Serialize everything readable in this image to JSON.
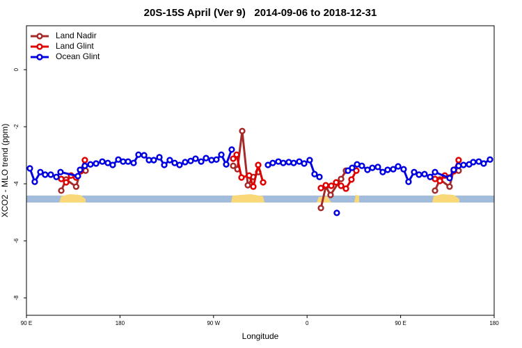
{
  "chart_data": {
    "type": "line",
    "title": "20S-15S April (Ver 9)   2014-09-06 to 2018-12-31",
    "xlabel": "Longitude",
    "ylabel": "XCO2 - MLO trend (ppm)",
    "xlim": [
      90,
      540
    ],
    "xticks": [
      {
        "value": 90,
        "label": "90 E"
      },
      {
        "value": 180,
        "label": "180"
      },
      {
        "value": 270,
        "label": "90 W"
      },
      {
        "value": 360,
        "label": "0"
      },
      {
        "value": 450,
        "label": "90 E"
      },
      {
        "value": 540,
        "label": "180"
      }
    ],
    "ylim": [
      -8.61,
      1.54
    ],
    "yticks": [
      0,
      -2,
      -4,
      -6,
      -8
    ],
    "grid": false,
    "legend": "top-left",
    "series": [
      {
        "name": "Land Nadir",
        "color": "#a52a2a",
        "x": [
          123.5,
          128.2,
          137.8,
          142.2,
          146.9,
          null,
          288.9,
          293,
          297.6,
          303,
          308.3,
          313,
          null,
          373.3,
          378,
          382.6,
          392.7,
          397.4,
          null,
          483.1,
          487.8,
          497.1,
          501.1,
          505.8
        ],
        "values": [
          -4.24,
          -3.85,
          -4.1,
          -3.51,
          -3.54,
          null,
          -3.37,
          -3.49,
          -2.15,
          -4.05,
          -3.76,
          -3.59,
          null,
          -4.85,
          -4.1,
          -4.39,
          -3.83,
          -3.54,
          null,
          -4.24,
          -3.85,
          -4.1,
          -3.51,
          -3.54
        ]
      },
      {
        "name": "Land Glint",
        "color": "#e00000",
        "x": [
          123.5,
          128.2,
          132.9,
          137.8,
          142.2,
          146.2,
          null,
          288.9,
          292.2,
          296.9,
          304.3,
          308.3,
          313,
          317.7,
          null,
          373.3,
          378,
          383.3,
          388,
          392.7,
          397.4,
          402.7,
          407.4,
          null,
          483.1,
          487.8,
          492.5,
          497.1,
          501.1,
          505.8
        ],
        "values": [
          -3.83,
          -3.95,
          -3.71,
          -3.78,
          -3.56,
          -3.17,
          null,
          -3.12,
          -2.98,
          -3.78,
          -3.71,
          -4.1,
          -3.34,
          -3.95,
          null,
          -4.15,
          -4.05,
          -4.07,
          -3.95,
          -4.07,
          -4.17,
          -3.85,
          -3.54,
          null,
          -3.83,
          -3.9,
          -3.71,
          -3.78,
          -3.56,
          -3.17
        ]
      },
      {
        "name": "Ocean Glint",
        "color": "#0000e0",
        "x": [
          93.3,
          98,
          103.4,
          108,
          113.4,
          118.8,
          122.8,
          139.5,
          141.6,
          146.2,
          151.6,
          157,
          163,
          168.3,
          173,
          178.4,
          183,
          187.8,
          193.1,
          197.8,
          203.2,
          207.9,
          212.5,
          217.9,
          222.6,
          227.9,
          232.6,
          237.3,
          242.7,
          248,
          252.7,
          258.1,
          262.8,
          268.1,
          272.8,
          277.5,
          282.2,
          287.5,
          null,
          322.4,
          327,
          332.4,
          337.1,
          342.4,
          347.1,
          352.5,
          357.2,
          362.5,
          367.2,
          371.9,
          null,
          388.6,
          null,
          399.4,
          403.4,
          408.1,
          412.7,
          418.1,
          422.8,
          428.1,
          432.8,
          437.5,
          442.9,
          447.6,
          452.9,
          457.6,
          463,
          467.7,
          473,
          478.4,
          483.1,
          497.1,
          501.1,
          505.8,
          510.5,
          515.9,
          519.9,
          525.2,
          529.9,
          536
        ],
        "values": [
          -3.46,
          -3.93,
          -3.59,
          -3.68,
          -3.68,
          -3.76,
          -3.59,
          -3.73,
          -3.51,
          -3.37,
          -3.32,
          -3.29,
          -3.22,
          -3.27,
          -3.34,
          -3.15,
          -3.22,
          -3.22,
          -3.27,
          -2.98,
          -3.0,
          -3.17,
          -3.17,
          -3.07,
          -3.34,
          -3.17,
          -3.27,
          -3.34,
          -3.24,
          -3.2,
          -3.12,
          -3.22,
          -3.1,
          -3.17,
          -3.15,
          -2.98,
          -3.32,
          -2.8,
          null,
          -3.34,
          -3.27,
          -3.22,
          -3.27,
          -3.24,
          -3.27,
          -3.22,
          -3.29,
          -3.17,
          -3.66,
          -3.76,
          null,
          -5.02,
          null,
          -3.54,
          -3.44,
          -3.32,
          -3.37,
          -3.51,
          -3.44,
          -3.41,
          -3.59,
          -3.51,
          -3.49,
          -3.39,
          -3.49,
          -3.93,
          -3.59,
          -3.68,
          -3.66,
          -3.76,
          -3.59,
          -3.8,
          -3.51,
          -3.37,
          -3.34,
          -3.32,
          -3.24,
          -3.22,
          -3.29,
          -3.15
        ]
      }
    ]
  }
}
